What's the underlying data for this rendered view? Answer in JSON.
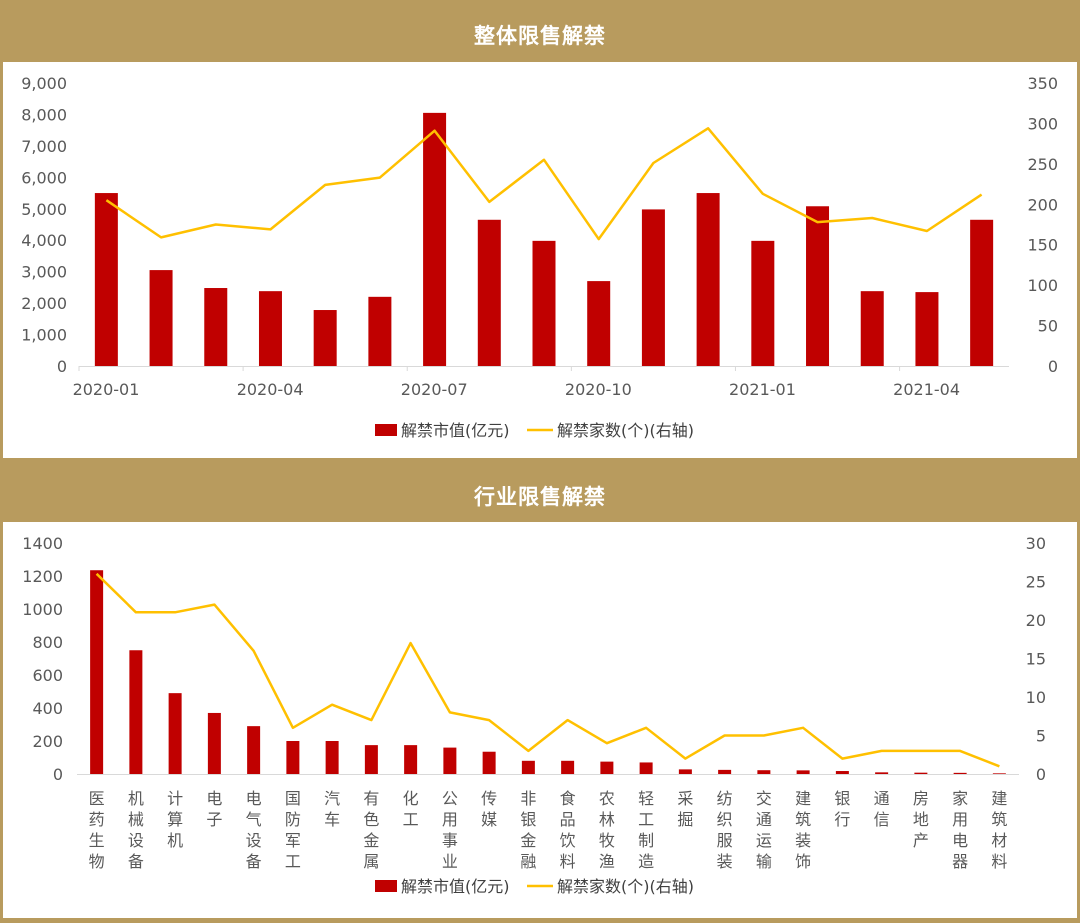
{
  "sections": [
    {
      "title": "整体限售解禁"
    },
    {
      "title": "行业限售解禁"
    }
  ],
  "colors": {
    "background_band": "#b89b5e",
    "bar": "#c00000",
    "line": "#ffc000",
    "axis_text": "#595959"
  },
  "chart_data": [
    {
      "type": "bar",
      "title": "整体限售解禁",
      "categories": [
        "2020-01",
        "2020-02",
        "2020-03",
        "2020-04",
        "2020-05",
        "2020-06",
        "2020-07",
        "2020-08",
        "2020-09",
        "2020-10",
        "2020-11",
        "2020-12",
        "2021-01",
        "2021-02",
        "2021-03",
        "2021-04",
        "2021-05"
      ],
      "x_tick_labels": [
        "2020-01",
        "",
        "",
        "2020-04",
        "",
        "",
        "2020-07",
        "",
        "",
        "2020-10",
        "",
        "",
        "2021-01",
        "",
        "",
        "2021-04",
        ""
      ],
      "series": [
        {
          "name": "解禁市值(亿元)",
          "type": "bar",
          "axis": "left",
          "values": [
            5500,
            3050,
            2480,
            2380,
            1780,
            2200,
            8050,
            4650,
            3980,
            2700,
            4980,
            5500,
            3980,
            5080,
            2380,
            2350,
            4650
          ]
        },
        {
          "name": "解禁家数(个)(右轴)",
          "type": "line",
          "axis": "right",
          "values": [
            205,
            159,
            175,
            169,
            224,
            233,
            291,
            203,
            255,
            157,
            251,
            294,
            213,
            178,
            183,
            167,
            212
          ]
        }
      ],
      "ylim_left": [
        0,
        9000
      ],
      "yticks_left": [
        "0",
        "1,000",
        "2,000",
        "3,000",
        "4,000",
        "5,000",
        "6,000",
        "7,000",
        "8,000",
        "9,000"
      ],
      "ylim_right": [
        0,
        350
      ],
      "yticks_right": [
        "0",
        "50",
        "100",
        "150",
        "200",
        "250",
        "300",
        "350"
      ],
      "legend": [
        "解禁市值(亿元)",
        "解禁家数(个)(右轴)"
      ],
      "legend_position": "bottom",
      "grid": false
    },
    {
      "type": "bar",
      "title": "行业限售解禁",
      "categories": [
        "医药生物",
        "机械设备",
        "计算机",
        "电子",
        "电气设备",
        "国防军工",
        "汽车",
        "有色金属",
        "化工",
        "公用事业",
        "传媒",
        "非银金融",
        "食品饮料",
        "农林牧渔",
        "轻工制造",
        "采掘",
        "纺织服装",
        "交通运输",
        "建筑装饰",
        "银行",
        "通信",
        "房地产",
        "家用电器",
        "建筑材料"
      ],
      "series": [
        {
          "name": "解禁市值(亿元)",
          "type": "bar",
          "axis": "left",
          "values": [
            1235,
            750,
            490,
            370,
            290,
            200,
            200,
            175,
            175,
            160,
            135,
            80,
            80,
            75,
            70,
            28,
            25,
            23,
            22,
            18,
            10,
            8,
            7,
            4
          ]
        },
        {
          "name": "解禁家数(个)(右轴)",
          "type": "line",
          "axis": "right",
          "values": [
            26,
            21,
            21,
            22,
            16,
            6,
            9,
            7,
            17,
            8,
            7,
            3,
            7,
            4,
            6,
            2,
            5,
            5,
            6,
            2,
            3,
            3,
            3,
            1
          ]
        }
      ],
      "ylim_left": [
        0,
        1400
      ],
      "yticks_left": [
        "0",
        "200",
        "400",
        "600",
        "800",
        "1000",
        "1200",
        "1400"
      ],
      "ylim_right": [
        0,
        30
      ],
      "yticks_right": [
        "0",
        "5",
        "10",
        "15",
        "20",
        "25",
        "30"
      ],
      "legend": [
        "解禁市值(亿元)",
        "解禁家数(个)(右轴)"
      ],
      "legend_position": "bottom",
      "grid": false
    }
  ]
}
